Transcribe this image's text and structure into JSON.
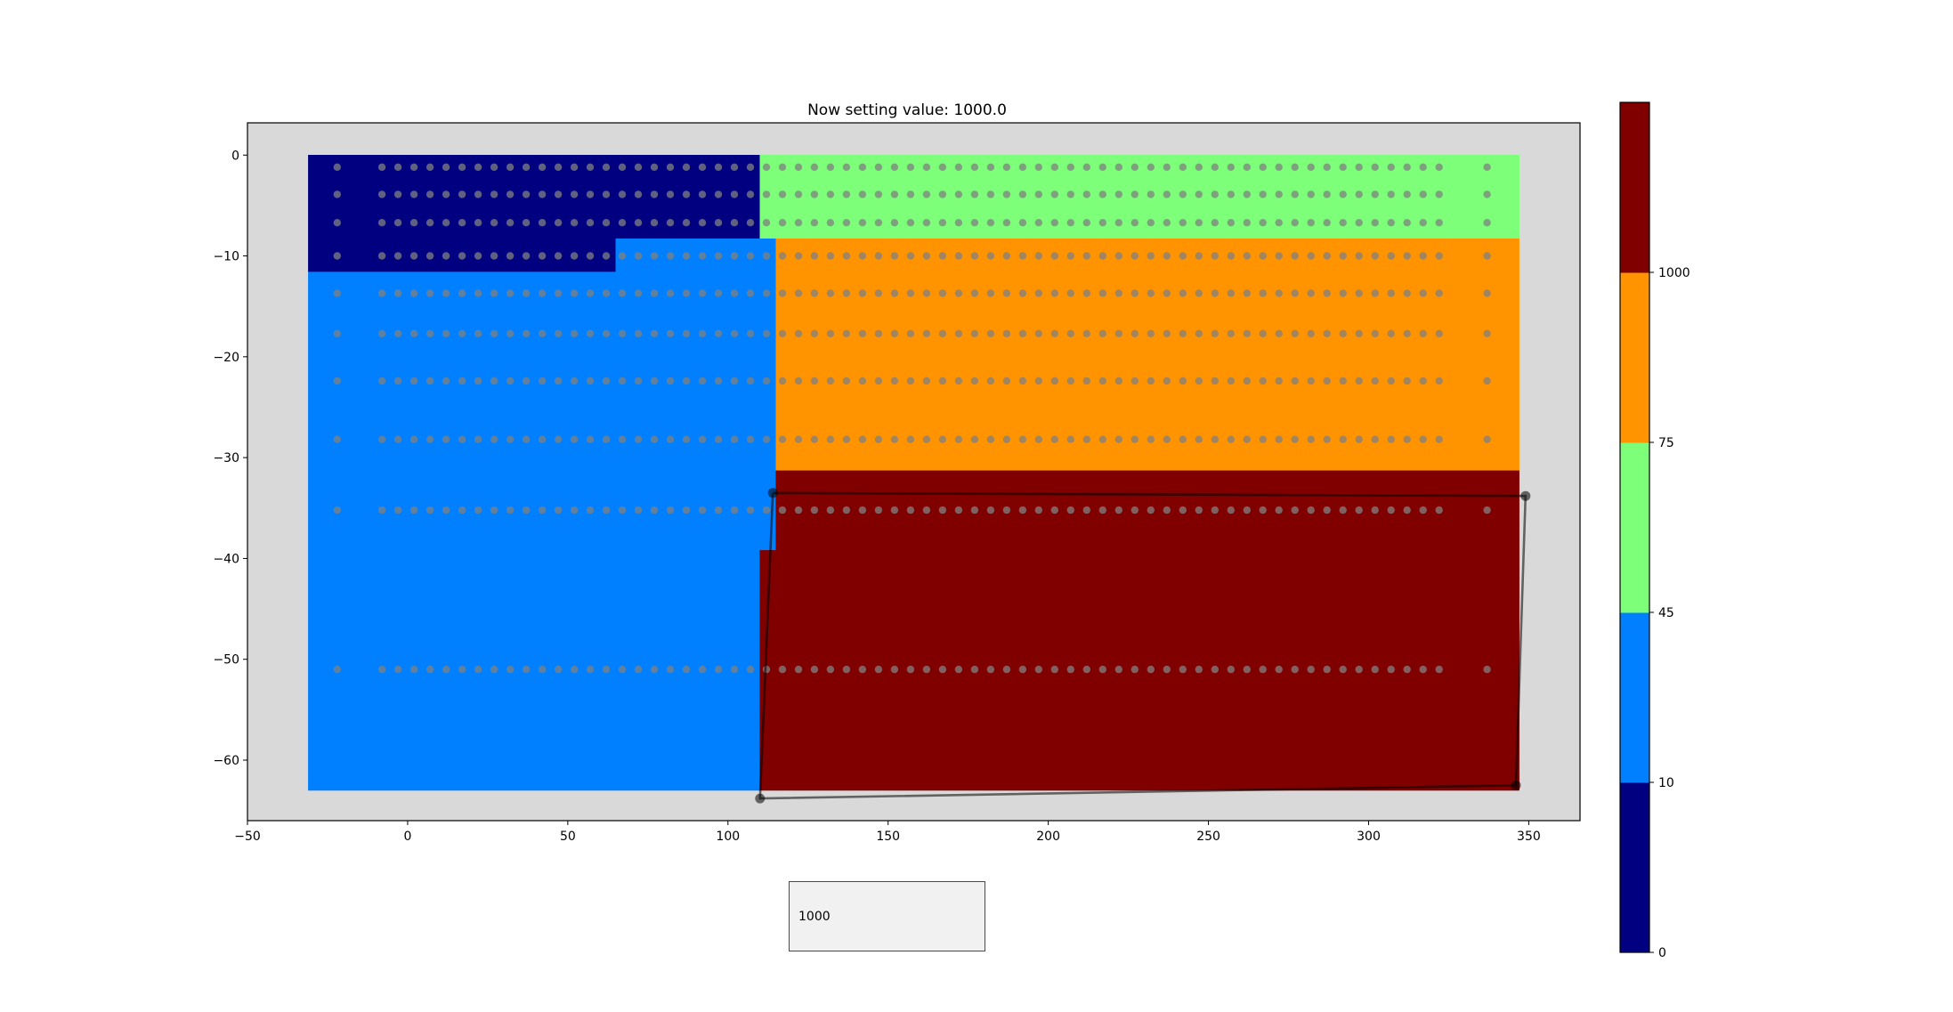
{
  "chart_data": {
    "type": "heatmap",
    "title": "Now setting value: 1000.0",
    "xlabel": "",
    "ylabel": "",
    "xlim": [
      -50,
      366
    ],
    "ylim": [
      -66,
      3.2
    ],
    "xticks": [
      -50,
      0,
      50,
      100,
      150,
      200,
      250,
      300,
      350
    ],
    "yticks": [
      0,
      -10,
      -20,
      -30,
      -40,
      -50,
      -60
    ],
    "background_color": "#d9d9d9",
    "regions": [
      {
        "name": "0-10",
        "color": "#000080",
        "polygon": [
          [
            -31,
            0
          ],
          [
            110,
            0
          ],
          [
            110,
            -8.3
          ],
          [
            65,
            -8.3
          ],
          [
            65,
            -11.6
          ],
          [
            -31,
            -11.6
          ]
        ]
      },
      {
        "name": "45-75",
        "color": "#7dff7a",
        "polygon": [
          [
            110,
            0
          ],
          [
            347,
            0
          ],
          [
            347,
            -8.3
          ],
          [
            110,
            -8.3
          ]
        ]
      },
      {
        "name": "10-45",
        "color": "#0080ff",
        "polygon": [
          [
            -31,
            -11.6
          ],
          [
            65,
            -11.6
          ],
          [
            65,
            -8.3
          ],
          [
            115,
            -8.3
          ],
          [
            115,
            -39.2
          ],
          [
            110,
            -39.2
          ],
          [
            110,
            -63
          ],
          [
            -31,
            -63
          ]
        ]
      },
      {
        "name": "75-1000",
        "color": "#ff9400",
        "polygon": [
          [
            115,
            -8.3
          ],
          [
            347,
            -8.3
          ],
          [
            347,
            -31.3
          ],
          [
            115,
            -31.3
          ]
        ]
      },
      {
        "name": "1000",
        "color": "#800000",
        "polygon": [
          [
            115,
            -31.3
          ],
          [
            347,
            -31.3
          ],
          [
            347,
            -63
          ],
          [
            110,
            -63
          ],
          [
            110,
            -39.2
          ],
          [
            115,
            -39.2
          ]
        ]
      }
    ],
    "grid_points": {
      "x": [
        -22,
        -8,
        -3,
        2,
        7,
        12,
        17,
        22,
        27,
        32,
        37,
        42,
        47,
        52,
        57,
        62,
        67,
        72,
        77,
        82,
        87,
        92,
        97,
        102,
        107,
        112,
        117,
        122,
        127,
        132,
        137,
        142,
        147,
        152,
        157,
        162,
        167,
        172,
        177,
        182,
        187,
        192,
        197,
        202,
        207,
        212,
        217,
        222,
        227,
        232,
        237,
        242,
        247,
        252,
        257,
        262,
        267,
        272,
        277,
        282,
        287,
        292,
        297,
        302,
        307,
        312,
        317,
        322,
        337
      ],
      "y": [
        -1.2,
        -3.9,
        -6.7,
        -10,
        -13.7,
        -17.7,
        -22.4,
        -28.2,
        -35.2,
        -51
      ],
      "color": "#808080"
    },
    "selection_polygon": [
      [
        114,
        -33.5
      ],
      [
        349,
        -33.8
      ],
      [
        346,
        -62.5
      ],
      [
        110,
        -63.8
      ],
      [
        114,
        -33.5
      ]
    ],
    "colorbar": {
      "colors": [
        "#000080",
        "#0080ff",
        "#7dff7a",
        "#ff9400",
        "#800000"
      ],
      "boundaries": [
        0,
        10,
        45,
        75,
        1000
      ],
      "tick_labels": [
        "0",
        "10",
        "45",
        "75",
        "1000"
      ]
    }
  },
  "text_input": {
    "value": "1000"
  }
}
